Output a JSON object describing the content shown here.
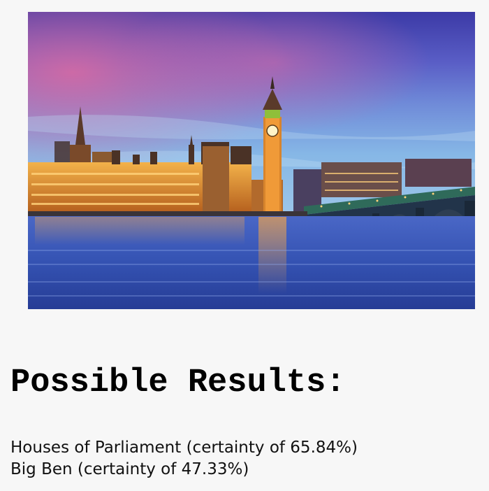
{
  "image": {
    "alt": "Houses of Parliament and Big Ben at dusk over the River Thames",
    "sky_colors": [
      "#3a3ba8",
      "#5a62c9",
      "#d9699e",
      "#7fb5e4"
    ],
    "water_colors": [
      "#3a57b8",
      "#2a3f9a"
    ],
    "light_color": "#f2a640"
  },
  "page": {
    "heading": "Possible Results:"
  },
  "results": [
    {
      "text": "Houses of Parliament (certainty of 65.84%)",
      "label": "Houses of Parliament",
      "certainty": 65.84
    },
    {
      "text": "Big Ben (certainty of 47.33%)",
      "label": "Big Ben",
      "certainty": 47.33
    }
  ]
}
